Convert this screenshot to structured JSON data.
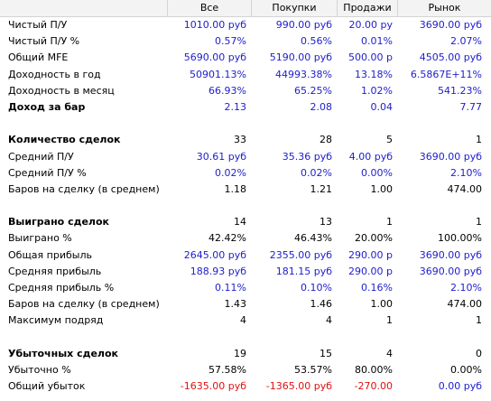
{
  "columns": [
    "Все",
    "Покупки",
    "Продажи",
    "Рынок"
  ],
  "rows": [
    {
      "label": "Чистый П/У",
      "bold": false,
      "color": "blue",
      "values": [
        "1010.00 руб",
        "990.00 руб",
        "20.00 ру",
        "3690.00 руб"
      ]
    },
    {
      "label": "Чистый П/У %",
      "bold": false,
      "color": "blue",
      "values": [
        "0.57%",
        "0.56%",
        "0.01%",
        "2.07%"
      ]
    },
    {
      "label": "Общий MFE",
      "bold": false,
      "color": "blue",
      "values": [
        "5690.00 руб",
        "5190.00 руб",
        "500.00 р",
        "4505.00 руб"
      ]
    },
    {
      "label": "Доходность в год",
      "bold": false,
      "color": "blue",
      "values": [
        "50901.13%",
        "44993.38%",
        "13.18%",
        "6.5867E+11%"
      ]
    },
    {
      "label": "Доходность в месяц",
      "bold": false,
      "color": "blue",
      "values": [
        "66.93%",
        "65.25%",
        "1.02%",
        "541.23%"
      ]
    },
    {
      "label": "Доход за бар",
      "bold": true,
      "color": "blue",
      "values": [
        "2.13",
        "2.08",
        "0.04",
        "7.77"
      ]
    },
    {
      "label": "",
      "blank": true,
      "values": [
        "",
        "",
        "",
        ""
      ]
    },
    {
      "label": "Количество сделок",
      "bold": true,
      "color": "black",
      "values": [
        "33",
        "28",
        "5",
        "1"
      ]
    },
    {
      "label": "Средний П/У",
      "bold": false,
      "color": "blue",
      "values": [
        "30.61 руб",
        "35.36 руб",
        "4.00 руб",
        "3690.00 руб"
      ]
    },
    {
      "label": "Средний П/У %",
      "bold": false,
      "color": "blue",
      "values": [
        "0.02%",
        "0.02%",
        "0.00%",
        "2.10%"
      ]
    },
    {
      "label": "Баров на сделку (в среднем)",
      "bold": false,
      "color": "black",
      "values": [
        "1.18",
        "1.21",
        "1.00",
        "474.00"
      ]
    },
    {
      "label": "",
      "blank": true,
      "values": [
        "",
        "",
        "",
        ""
      ]
    },
    {
      "label": "Выиграно сделок",
      "bold": true,
      "color": "black",
      "values": [
        "14",
        "13",
        "1",
        "1"
      ]
    },
    {
      "label": "Выиграно %",
      "bold": false,
      "color": "black",
      "values": [
        "42.42%",
        "46.43%",
        "20.00%",
        "100.00%"
      ]
    },
    {
      "label": "Общая прибыль",
      "bold": false,
      "color": "blue",
      "values": [
        "2645.00 руб",
        "2355.00 руб",
        "290.00 р",
        "3690.00 руб"
      ]
    },
    {
      "label": "Средняя прибыль",
      "bold": false,
      "color": "blue",
      "values": [
        "188.93 руб",
        "181.15 руб",
        "290.00 р",
        "3690.00 руб"
      ]
    },
    {
      "label": "Средняя прибыль %",
      "bold": false,
      "color": "blue",
      "values": [
        "0.11%",
        "0.10%",
        "0.16%",
        "2.10%"
      ]
    },
    {
      "label": "Баров на сделку (в среднем)",
      "bold": false,
      "color": "black",
      "values": [
        "1.43",
        "1.46",
        "1.00",
        "474.00"
      ]
    },
    {
      "label": "Максимум подряд",
      "bold": false,
      "color": "black",
      "values": [
        "4",
        "4",
        "1",
        "1"
      ]
    },
    {
      "label": "",
      "blank": true,
      "values": [
        "",
        "",
        "",
        ""
      ]
    },
    {
      "label": "Убыточных сделок",
      "bold": true,
      "color": "black",
      "values": [
        "19",
        "15",
        "4",
        "0"
      ]
    },
    {
      "label": "Убыточно %",
      "bold": false,
      "color": "black",
      "values": [
        "57.58%",
        "53.57%",
        "80.00%",
        "0.00%"
      ]
    },
    {
      "label": "Общий убыток",
      "bold": false,
      "colors": [
        "red",
        "red",
        "red",
        "blue"
      ],
      "values": [
        "-1635.00 руб",
        "-1365.00 руб",
        "-270.00",
        "0.00 руб"
      ]
    }
  ]
}
